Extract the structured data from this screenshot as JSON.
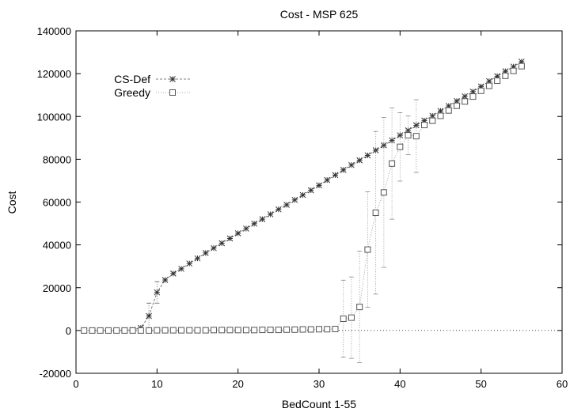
{
  "chart_data": {
    "type": "line",
    "title": "Cost - MSP 625",
    "xlabel": "BedCount 1-55",
    "ylabel": "Cost",
    "xlim": [
      0,
      60
    ],
    "ylim": [
      -20000,
      140000
    ],
    "xticks": [
      0,
      10,
      20,
      30,
      40,
      50,
      60
    ],
    "yticks": [
      -20000,
      0,
      20000,
      40000,
      60000,
      80000,
      100000,
      120000,
      140000
    ],
    "grid": false,
    "legend_position": "top-left",
    "series": [
      {
        "name": "CS-Def",
        "marker": "asterisk",
        "color": "#555555",
        "x": [
          1,
          2,
          3,
          4,
          5,
          6,
          7,
          8,
          9,
          10,
          11,
          12,
          13,
          14,
          15,
          16,
          17,
          18,
          19,
          20,
          21,
          22,
          23,
          24,
          25,
          26,
          27,
          28,
          29,
          30,
          31,
          32,
          33,
          34,
          35,
          36,
          37,
          38,
          39,
          40,
          41,
          42,
          43,
          44,
          45,
          46,
          47,
          48,
          49,
          50,
          51,
          52,
          53,
          54,
          55
        ],
        "y": [
          0,
          0,
          0,
          0,
          0,
          100,
          300,
          1200,
          6800,
          17800,
          23600,
          26600,
          28800,
          31300,
          33700,
          36200,
          38500,
          40800,
          43000,
          45400,
          47600,
          49900,
          52000,
          54300,
          56600,
          58700,
          61000,
          63300,
          65500,
          67800,
          70300,
          72600,
          75000,
          77300,
          79500,
          81800,
          84200,
          86500,
          88800,
          91200,
          93500,
          95900,
          98100,
          100300,
          102600,
          104900,
          107200,
          109400,
          111600,
          114000,
          116500,
          118800,
          121100,
          123300,
          125600
        ],
        "error": [
          0,
          0,
          0,
          0,
          0,
          0,
          0,
          0,
          6000,
          5000,
          0,
          0,
          0,
          0,
          0,
          0,
          0,
          0,
          0,
          0,
          0,
          0,
          0,
          0,
          0,
          0,
          0,
          0,
          0,
          0,
          0,
          0,
          0,
          0,
          0,
          0,
          0,
          0,
          0,
          0,
          0,
          0,
          0,
          0,
          0,
          0,
          0,
          0,
          0,
          0,
          0,
          0,
          0,
          0,
          0
        ]
      },
      {
        "name": "Greedy",
        "marker": "square",
        "color": "#888888",
        "x": [
          1,
          2,
          3,
          4,
          5,
          6,
          7,
          8,
          9,
          10,
          11,
          12,
          13,
          14,
          15,
          16,
          17,
          18,
          19,
          20,
          21,
          22,
          23,
          24,
          25,
          26,
          27,
          28,
          29,
          30,
          31,
          32,
          33,
          34,
          35,
          36,
          37,
          38,
          39,
          40,
          41,
          42,
          43,
          44,
          45,
          46,
          47,
          48,
          49,
          50,
          51,
          52,
          53,
          54,
          55
        ],
        "y": [
          0,
          0,
          0,
          0,
          0,
          0,
          0,
          0,
          0,
          100,
          100,
          100,
          100,
          100,
          100,
          100,
          200,
          200,
          200,
          200,
          200,
          200,
          300,
          300,
          300,
          400,
          400,
          500,
          500,
          600,
          600,
          700,
          5500,
          6000,
          11000,
          37800,
          55000,
          64500,
          78000,
          85800,
          91200,
          90800,
          96000,
          98000,
          100300,
          102800,
          105000,
          107000,
          109300,
          112000,
          114300,
          116700,
          119000,
          121300,
          123500
        ],
        "error": [
          0,
          0,
          0,
          0,
          0,
          0,
          0,
          0,
          0,
          0,
          0,
          0,
          0,
          0,
          0,
          0,
          0,
          0,
          0,
          0,
          0,
          0,
          0,
          0,
          0,
          0,
          0,
          0,
          0,
          0,
          0,
          0,
          18000,
          19000,
          26000,
          27000,
          38000,
          35000,
          26000,
          16000,
          9000,
          17000,
          0,
          0,
          0,
          0,
          0,
          0,
          0,
          0,
          0,
          0,
          0,
          0,
          0
        ]
      }
    ]
  }
}
